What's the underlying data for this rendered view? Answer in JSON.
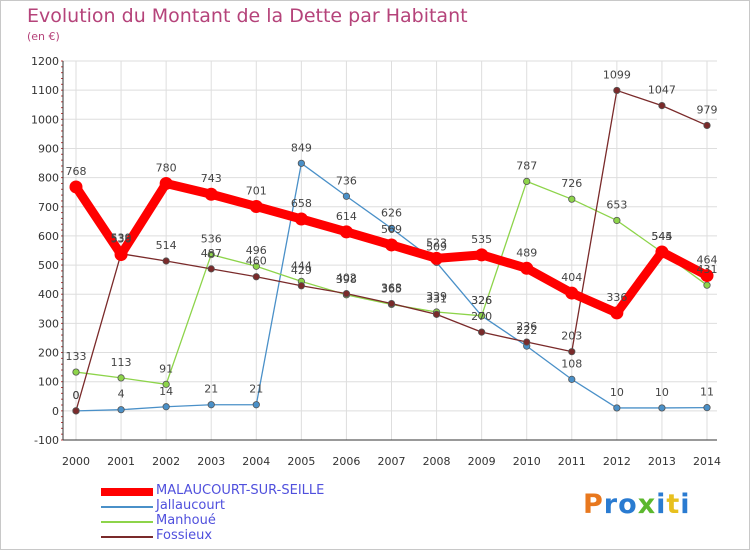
{
  "title": "Evolution du Montant de la Dette par Habitant",
  "subtitle": "(en €)",
  "logo": {
    "letters": [
      "P",
      "r",
      "o",
      "x",
      "i",
      "t",
      "i"
    ],
    "colors": [
      "#e8781e",
      "#2a7bd1",
      "#2a7bd1",
      "#5cb82e",
      "#2a7bd1",
      "#e8c01e",
      "#2a7bd1"
    ]
  },
  "chart_data": {
    "type": "line",
    "title": "Evolution du Montant de la Dette par Habitant",
    "ylabel": "(en €)",
    "xlabel": "",
    "ylim": [
      -100,
      1200
    ],
    "y_ticks": [
      -100,
      0,
      100,
      200,
      300,
      400,
      500,
      600,
      700,
      800,
      900,
      1000,
      1100,
      1200
    ],
    "x": [
      2000,
      2001,
      2002,
      2003,
      2004,
      2005,
      2006,
      2007,
      2008,
      2009,
      2010,
      2011,
      2012,
      2013,
      2014
    ],
    "legend_position": "bottom-left",
    "series": [
      {
        "name": "MALAUCOURT-SUR-SEILLE",
        "color": "#ff0000",
        "values": [
          768,
          536,
          780,
          743,
          701,
          658,
          614,
          569,
          523,
          535,
          489,
          404,
          336,
          545,
          464
        ]
      },
      {
        "name": "Jallaucourt",
        "color": "#4a90c8",
        "values": [
          0,
          4,
          14,
          21,
          21,
          849,
          736,
          626,
          509,
          326,
          222,
          108,
          10,
          10,
          11
        ]
      },
      {
        "name": "Manhoué",
        "color": "#8dd44a",
        "values": [
          133,
          113,
          91,
          536,
          496,
          444,
          398,
          365,
          339,
          326,
          787,
          726,
          653,
          544,
          431
        ]
      },
      {
        "name": "Fossieux",
        "color": "#7a2a2a",
        "values": [
          0,
          539,
          514,
          487,
          460,
          429,
          402,
          368,
          331,
          270,
          236,
          203,
          1099,
          1047,
          979
        ]
      }
    ],
    "grid": true
  }
}
